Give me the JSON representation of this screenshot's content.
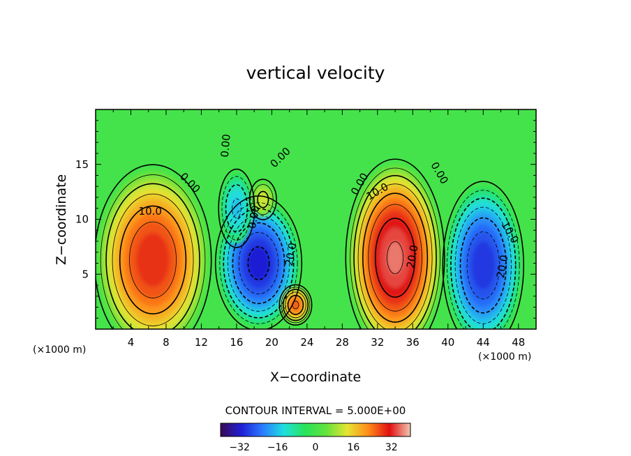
{
  "chart_data": {
    "type": "heatmap",
    "title": "vertical velocity",
    "xlabel": "X−coordinate",
    "ylabel": "Z−coordinate",
    "x_unit_left": "(×1000 m)",
    "x_unit_right": "(×1000 m)",
    "xlim": [
      0,
      50
    ],
    "ylim": [
      0,
      20
    ],
    "x_ticks": [
      4,
      8,
      12,
      16,
      20,
      24,
      28,
      32,
      36,
      40,
      44,
      48
    ],
    "y_ticks": [
      5,
      10,
      15
    ],
    "contour_interval_label": "CONTOUR INTERVAL = 5.000E+00",
    "colorbar_ticks": [
      -32,
      -16,
      0,
      16,
      32
    ],
    "colorbar_range": [
      -40,
      40
    ],
    "colormap": [
      "#3a0a52",
      "#1f1fd6",
      "#2a7cff",
      "#1fe0e0",
      "#27e35a",
      "#63e33c",
      "#e5e533",
      "#ff8c1a",
      "#e01010",
      "#f2c6b0"
    ],
    "background_value": 0,
    "cells": [
      {
        "x": 6.5,
        "z": 6.3,
        "rx": 6.5,
        "rz": 8.5,
        "peak": 30
      },
      {
        "x": 34.0,
        "z": 6.5,
        "rx": 5.5,
        "rz": 8.8,
        "peak": 36
      },
      {
        "x": 44.0,
        "z": 5.8,
        "rx": 4.5,
        "rz": 7.5,
        "peak": -30
      },
      {
        "x": 18.5,
        "z": 6.0,
        "rx": 4.8,
        "rz": 6.0,
        "peak": -32
      },
      {
        "x": 16.0,
        "z": 11.0,
        "rx": 2.0,
        "rz": 3.5,
        "peak": -16
      },
      {
        "x": 22.7,
        "z": 2.2,
        "rx": 1.8,
        "rz": 1.8,
        "peak": 26
      },
      {
        "x": 19.0,
        "z": 11.8,
        "rx": 1.5,
        "rz": 1.8,
        "peak": 12
      }
    ],
    "contour_labels": [
      {
        "text": "10.0",
        "x": 6.2,
        "z": 10.7,
        "angle": 0
      },
      {
        "text": "0.00",
        "x": 10.7,
        "z": 13.3,
        "angle": 45
      },
      {
        "text": "0.00",
        "x": 14.8,
        "z": 16.7,
        "angle": -85
      },
      {
        "text": "0.00",
        "x": 21.0,
        "z": 15.6,
        "angle": -45
      },
      {
        "text": "0.00",
        "x": 18.0,
        "z": 10.2,
        "angle": -80
      },
      {
        "text": "20.0",
        "x": 22.2,
        "z": 6.8,
        "angle": -80
      },
      {
        "text": "0.00",
        "x": 30.0,
        "z": 13.2,
        "angle": -60
      },
      {
        "text": "10.0",
        "x": 32.0,
        "z": 12.5,
        "angle": -30
      },
      {
        "text": "20.0",
        "x": 36.0,
        "z": 6.6,
        "angle": -80
      },
      {
        "text": "0.00",
        "x": 39.0,
        "z": 14.2,
        "angle": 60
      },
      {
        "text": "10.0",
        "x": 47.0,
        "z": 8.8,
        "angle": 60
      },
      {
        "text": "20.0",
        "x": 46.2,
        "z": 5.7,
        "angle": -80
      }
    ]
  }
}
